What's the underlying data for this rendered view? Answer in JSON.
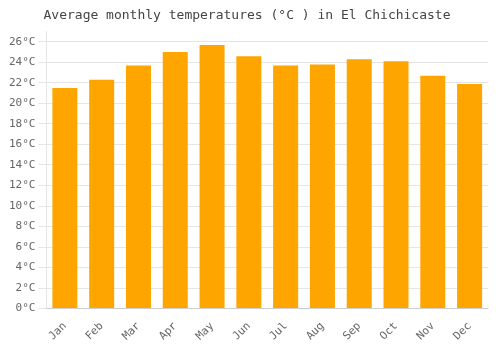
{
  "chart_data": {
    "type": "bar",
    "title": "Average monthly temperatures (°C ) in El Chichicaste",
    "categories": [
      "Jan",
      "Feb",
      "Mar",
      "Apr",
      "May",
      "Jun",
      "Jul",
      "Aug",
      "Sep",
      "Oct",
      "Nov",
      "Dec"
    ],
    "values": [
      21.5,
      22.3,
      23.7,
      25.0,
      25.7,
      24.6,
      23.7,
      23.8,
      24.3,
      24.1,
      22.7,
      21.9
    ],
    "color": "#FFA500",
    "ylim": [
      0,
      27
    ],
    "yticks": [
      {
        "value": 0,
        "label": "0°C"
      },
      {
        "value": 2,
        "label": "2°C"
      },
      {
        "value": 4,
        "label": "4°C"
      },
      {
        "value": 6,
        "label": "6°C"
      },
      {
        "value": 8,
        "label": "8°C"
      },
      {
        "value": 10,
        "label": "10°C"
      },
      {
        "value": 12,
        "label": "12°C"
      },
      {
        "value": 14,
        "label": "14°C"
      },
      {
        "value": 16,
        "label": "16°C"
      },
      {
        "value": 18,
        "label": "18°C"
      },
      {
        "value": 20,
        "label": "20°C"
      },
      {
        "value": 22,
        "label": "22°C"
      },
      {
        "value": 24,
        "label": "24°C"
      },
      {
        "value": 26,
        "label": "26°C"
      }
    ],
    "grid": true
  }
}
